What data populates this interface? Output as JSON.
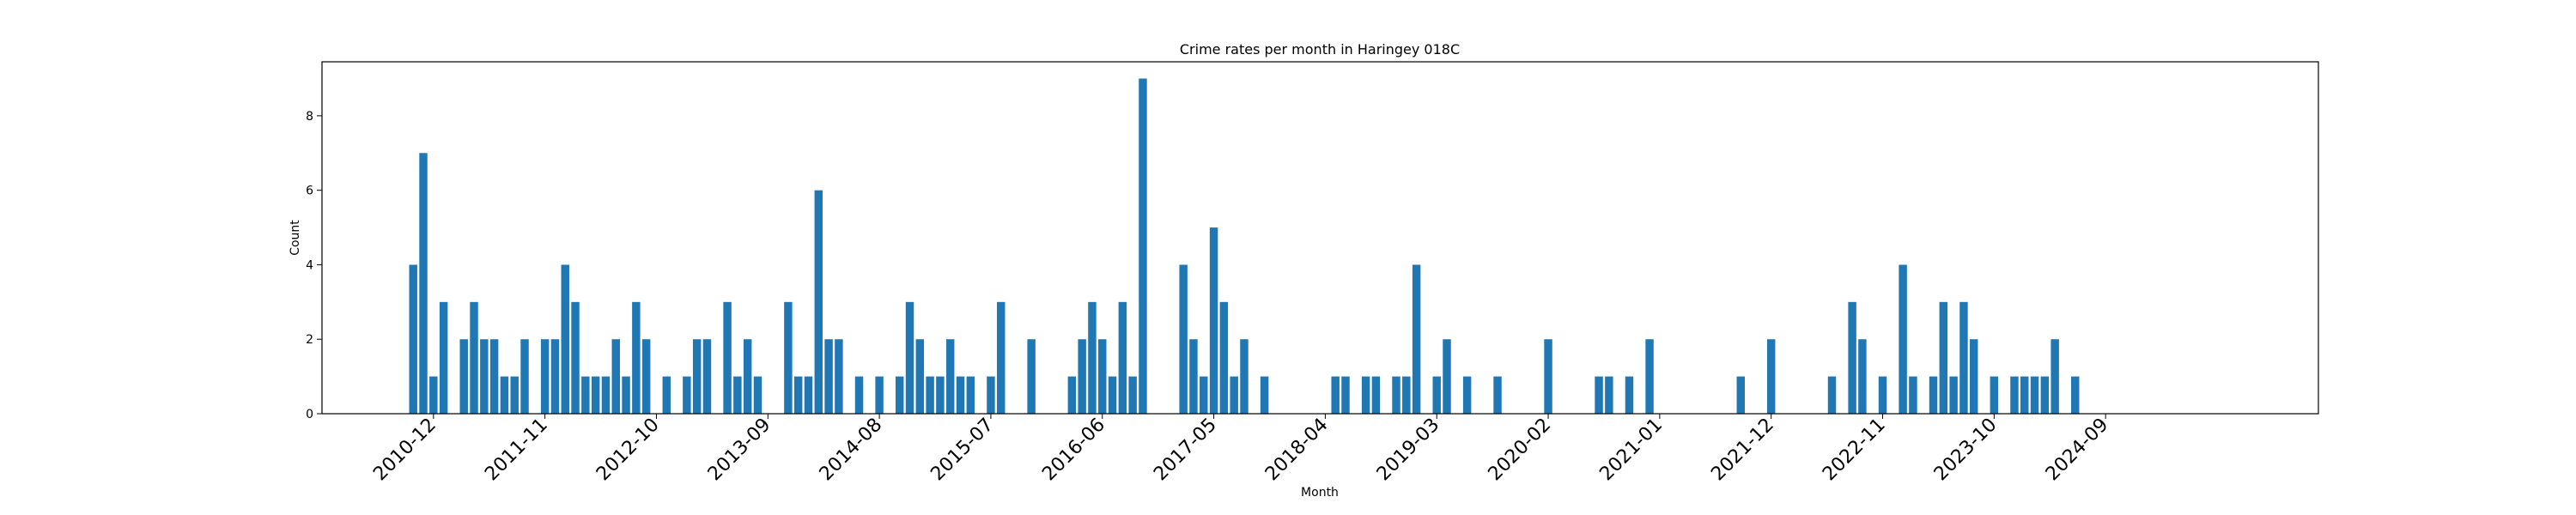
{
  "chart_data": {
    "type": "bar",
    "title": "Crime rates per month in Haringey 018C",
    "xlabel": "Month",
    "ylabel": "Count",
    "ylim": [
      0,
      9.45
    ],
    "yticks": [
      0,
      2,
      4,
      6,
      8
    ],
    "xlim": [
      "2010-01",
      "2026-06"
    ],
    "xticks": [
      "2010-12",
      "2011-11",
      "2012-10",
      "2013-09",
      "2014-08",
      "2015-07",
      "2016-06",
      "2017-05",
      "2018-04",
      "2019-03",
      "2020-02",
      "2021-01",
      "2021-12",
      "2022-11",
      "2023-10",
      "2024-09"
    ],
    "color": "#1f77b4",
    "grid": false,
    "x": [
      "2010-10",
      "2010-11",
      "2010-12",
      "2011-01",
      "2011-03",
      "2011-04",
      "2011-05",
      "2011-06",
      "2011-07",
      "2011-08",
      "2011-09",
      "2011-11",
      "2011-12",
      "2012-01",
      "2012-02",
      "2012-03",
      "2012-04",
      "2012-05",
      "2012-06",
      "2012-07",
      "2012-08",
      "2012-09",
      "2012-11",
      "2013-01",
      "2013-02",
      "2013-03",
      "2013-05",
      "2013-06",
      "2013-07",
      "2013-08",
      "2013-11",
      "2013-12",
      "2014-01",
      "2014-02",
      "2014-03",
      "2014-04",
      "2014-06",
      "2014-08",
      "2014-10",
      "2014-11",
      "2014-12",
      "2015-01",
      "2015-02",
      "2015-03",
      "2015-04",
      "2015-05",
      "2015-07",
      "2015-08",
      "2015-11",
      "2016-03",
      "2016-04",
      "2016-05",
      "2016-06",
      "2016-07",
      "2016-08",
      "2016-09",
      "2016-10",
      "2017-02",
      "2017-03",
      "2017-04",
      "2017-05",
      "2017-06",
      "2017-07",
      "2017-08",
      "2017-10",
      "2018-05",
      "2018-06",
      "2018-08",
      "2018-09",
      "2018-11",
      "2018-12",
      "2019-01",
      "2019-03",
      "2019-04",
      "2019-06",
      "2019-09",
      "2020-02",
      "2020-07",
      "2020-08",
      "2020-10",
      "2020-12",
      "2021-09",
      "2021-12",
      "2022-06",
      "2022-08",
      "2022-09",
      "2022-11",
      "2023-01",
      "2023-02",
      "2023-04",
      "2023-05",
      "2023-06",
      "2023-07",
      "2023-08",
      "2023-10",
      "2023-12",
      "2024-01",
      "2024-02",
      "2024-03",
      "2024-04",
      "2024-06"
    ],
    "values": [
      4,
      7,
      1,
      3,
      2,
      3,
      2,
      2,
      1,
      1,
      2,
      2,
      2,
      4,
      3,
      1,
      1,
      1,
      2,
      1,
      3,
      2,
      1,
      1,
      2,
      2,
      3,
      1,
      2,
      1,
      3,
      1,
      1,
      6,
      2,
      2,
      1,
      1,
      1,
      3,
      2,
      1,
      1,
      2,
      1,
      1,
      1,
      3,
      2,
      1,
      2,
      3,
      2,
      1,
      3,
      1,
      9,
      4,
      2,
      1,
      5,
      3,
      1,
      2,
      1,
      1,
      1,
      1,
      1,
      1,
      1,
      4,
      1,
      2,
      1,
      1,
      2,
      1,
      1,
      1,
      2,
      1,
      2,
      1,
      3,
      2,
      1,
      4,
      1,
      1,
      3,
      1,
      3,
      2,
      1,
      1,
      1,
      1,
      1,
      2,
      1
    ]
  }
}
